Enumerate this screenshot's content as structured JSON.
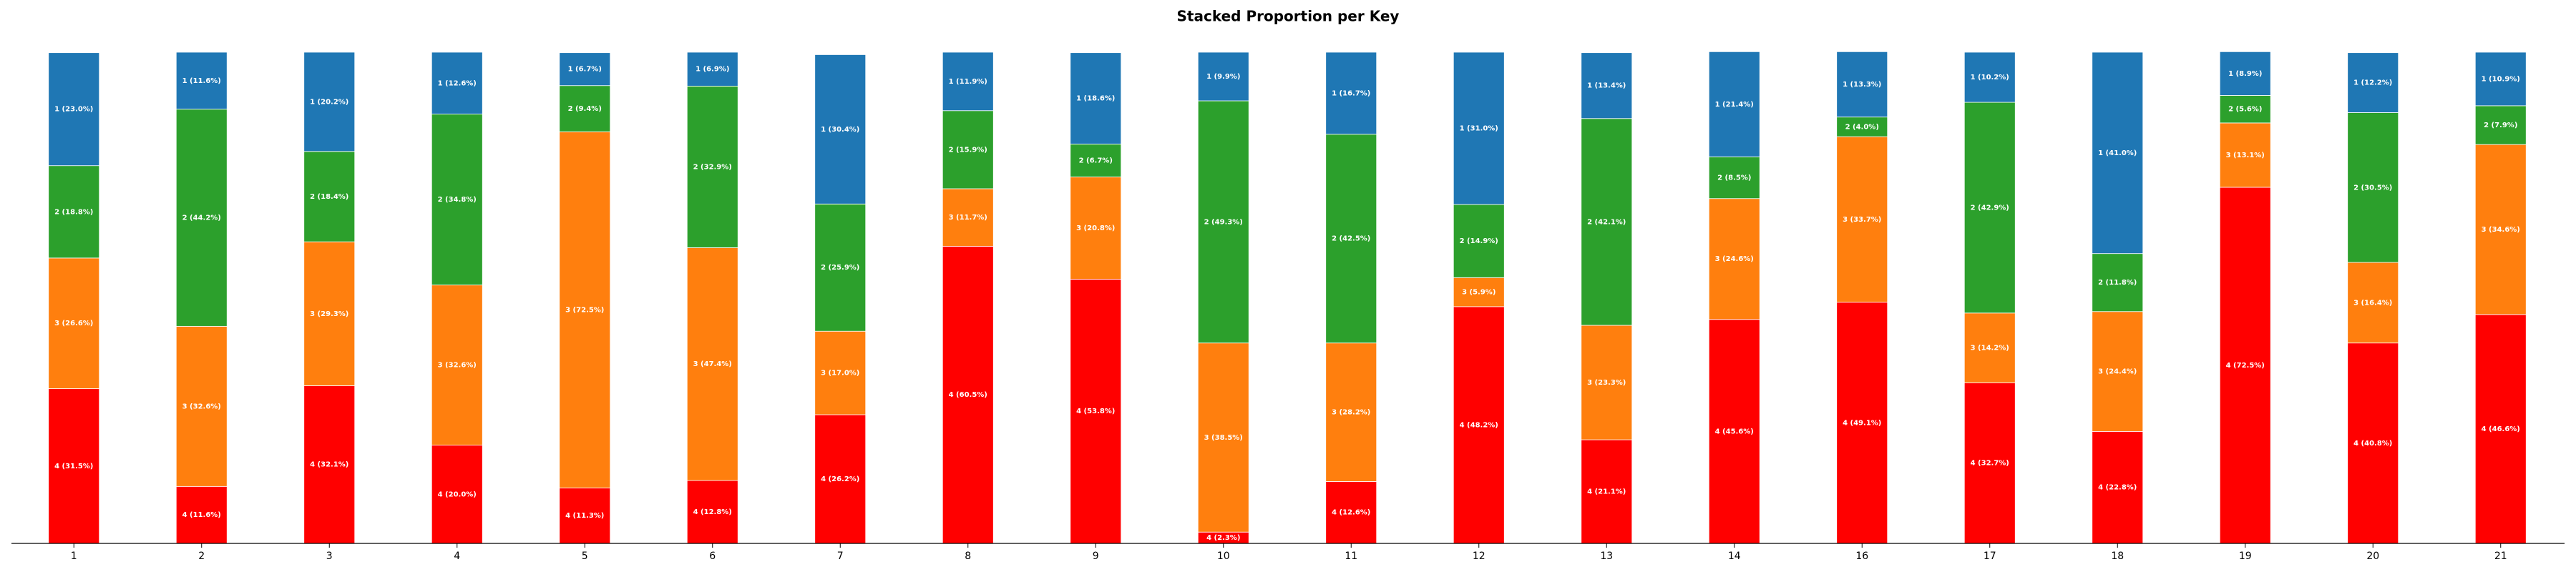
{
  "chart_data": {
    "type": "stacked_bar",
    "title": "Stacked Proportion per Key",
    "categories": [
      "1",
      "2",
      "3",
      "4",
      "5",
      "6",
      "7",
      "8",
      "9",
      "10",
      "11",
      "12",
      "13",
      "14",
      "16",
      "17",
      "18",
      "19",
      "20",
      "21"
    ],
    "ylim": [
      0,
      100
    ],
    "series": [
      {
        "name": "4",
        "color": "#ff0000",
        "values": [
          31.5,
          11.6,
          32.1,
          20.0,
          11.3,
          12.8,
          26.2,
          60.5,
          53.8,
          2.3,
          12.6,
          48.2,
          21.1,
          45.6,
          49.1,
          32.7,
          22.8,
          72.5,
          40.8,
          46.6
        ],
        "value_labels": [
          "4 (31.5%)",
          "4 (11.6%)",
          "4 (32.1%)",
          "4 (20.0%)",
          "4 (11.3%)",
          "4 (12.8%)",
          "4 (26.2%)",
          "4 (60.5%)",
          "4 (53.8%)",
          "4 (2.3%)",
          "4 (12.6%)",
          "4 (48.2%)",
          "4 (21.1%)",
          "4 (45.6%)",
          "4 (49.1%)",
          "4 (32.7%)",
          "4 (22.8%)",
          "4 (72.5%)",
          "4 (40.8%)",
          "4 (46.6%)"
        ]
      },
      {
        "name": "3",
        "color": "#ff7f0e",
        "values": [
          26.6,
          32.6,
          29.3,
          32.6,
          72.5,
          47.4,
          17.0,
          11.7,
          20.8,
          38.5,
          28.2,
          5.9,
          23.3,
          24.6,
          33.7,
          14.2,
          24.4,
          13.1,
          16.4,
          34.6
        ],
        "value_labels": [
          "3 (26.6%)",
          "3 (32.6%)",
          "3 (29.3%)",
          "3 (32.6%)",
          "3 (72.5%)",
          "3 (47.4%)",
          "3 (17.0%)",
          "3 (11.7%)",
          "3 (20.8%)",
          "3 (38.5%)",
          "3 (28.2%)",
          "3 (5.9%)",
          "3 (23.3%)",
          "3 (24.6%)",
          "3 (33.7%)",
          "3 (14.2%)",
          "3 (24.4%)",
          "3 (13.1%)",
          "3 (16.4%)",
          "3 (34.6%)"
        ]
      },
      {
        "name": "2",
        "color": "#2ca02c",
        "values": [
          18.8,
          44.2,
          18.4,
          34.8,
          9.4,
          32.9,
          25.9,
          15.9,
          6.7,
          49.3,
          42.5,
          14.9,
          42.1,
          8.5,
          4.0,
          42.9,
          11.8,
          5.6,
          30.5,
          7.9
        ],
        "value_labels": [
          "2 (18.8%)",
          "2 (44.2%)",
          "2 (18.4%)",
          "2 (34.8%)",
          "2 (9.4%)",
          "2 (32.9%)",
          "2 (25.9%)",
          "2 (15.9%)",
          "2 (6.7%)",
          "2 (49.3%)",
          "2 (42.5%)",
          "2 (14.9%)",
          "2 (42.1%)",
          "2 (8.5%)",
          "2 (4.0%)",
          "2 (42.9%)",
          "2 (11.8%)",
          "2 (5.6%)",
          "2 (30.5%)",
          "2 (7.9%)"
        ]
      },
      {
        "name": "1",
        "color": "#1f77b4",
        "values": [
          23.0,
          11.6,
          20.2,
          12.6,
          6.7,
          6.9,
          30.4,
          11.9,
          18.6,
          9.9,
          16.7,
          31.0,
          13.4,
          21.4,
          13.3,
          10.2,
          41.0,
          8.9,
          12.2,
          10.9
        ],
        "value_labels": [
          "1 (23.0%)",
          "1 (11.6%)",
          "1 (20.2%)",
          "1 (12.6%)",
          "1 (6.7%)",
          "1 (6.9%)",
          "1 (30.4%)",
          "1 (11.9%)",
          "1 (18.6%)",
          "1 (9.9%)",
          "1 (16.7%)",
          "1 (31.0%)",
          "1 (13.4%)",
          "1 (21.4%)",
          "1 (13.3%)",
          "1 (10.2%)",
          "1 (41.0%)",
          "1 (8.9%)",
          "1 (12.2%)",
          "1 (10.9%)"
        ]
      }
    ]
  }
}
